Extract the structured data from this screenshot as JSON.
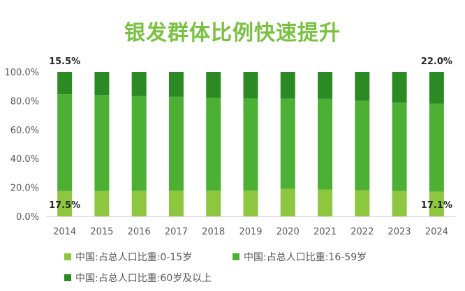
{
  "chart_data": {
    "type": "bar",
    "stacked": true,
    "title": "银发群体比例快速提升",
    "xlabel": "",
    "ylabel": "",
    "categories": [
      "2014",
      "2015",
      "2016",
      "2017",
      "2018",
      "2019",
      "2020",
      "2021",
      "2022",
      "2023",
      "2024"
    ],
    "ylim": [
      0,
      100
    ],
    "yticks": [
      "0.0%",
      "20.0%",
      "40.0%",
      "60.0%",
      "80.0%",
      "100.0%"
    ],
    "grid": false,
    "legend_position": "bottom",
    "series": [
      {
        "name": "中国:占总人口比重:0-15岁",
        "color": "#8dc63f",
        "values": [
          17.5,
          17.6,
          17.7,
          17.8,
          17.8,
          17.8,
          19.0,
          18.6,
          18.1,
          17.6,
          17.1
        ]
      },
      {
        "name": "中国:占总人口比重:16-59岁",
        "color": "#4cb035",
        "values": [
          67.0,
          66.3,
          65.6,
          64.9,
          64.3,
          63.8,
          62.5,
          62.7,
          62.1,
          61.2,
          60.9
        ]
      },
      {
        "name": "中国:占总人口比重:60岁及以上",
        "color": "#2b8a24",
        "values": [
          15.5,
          16.1,
          16.7,
          17.3,
          17.9,
          18.4,
          18.5,
          18.7,
          19.8,
          21.2,
          22.0
        ]
      }
    ],
    "data_labels": [
      {
        "text": "15.5%",
        "category": "2014",
        "series": 2,
        "anchor": "above"
      },
      {
        "text": "17.5%",
        "category": "2014",
        "series": 0,
        "anchor": "inside"
      },
      {
        "text": "22.0%",
        "category": "2024",
        "series": 2,
        "anchor": "above"
      },
      {
        "text": "17.1%",
        "category": "2024",
        "series": 0,
        "anchor": "inside"
      }
    ]
  }
}
